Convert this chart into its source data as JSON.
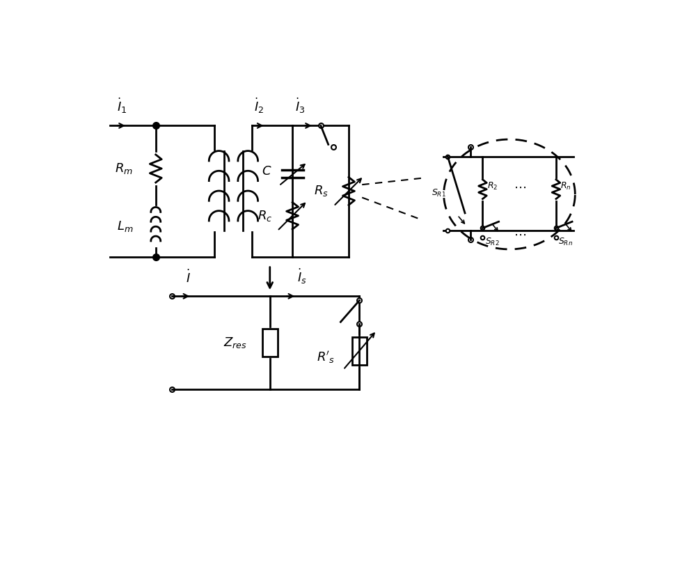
{
  "bg_color": "#ffffff",
  "line_color": "#000000",
  "line_width": 2.0,
  "figsize": [
    10.0,
    8.17
  ]
}
